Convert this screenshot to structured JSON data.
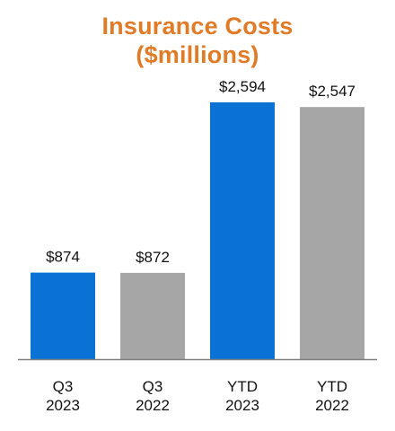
{
  "chart_data": {
    "type": "bar",
    "title_lines": [
      "Insurance Costs",
      "($millions)"
    ],
    "categories": [
      [
        "Q3",
        "2023"
      ],
      [
        "Q3",
        "2022"
      ],
      [
        "YTD",
        "2023"
      ],
      [
        "YTD",
        "2022"
      ]
    ],
    "values": [
      874,
      872,
      2594,
      2547
    ],
    "value_labels": [
      "$874",
      "$872",
      "$2,594",
      "$2,547"
    ],
    "bar_colors": [
      "#0a72d4",
      "#a6a6a6",
      "#0a72d4",
      "#a6a6a6"
    ],
    "ylim": [
      0,
      3000
    ],
    "grid": false,
    "legend": "none"
  },
  "colors": {
    "title": "#e07b28",
    "current_year": "#0a72d4",
    "prior_year": "#a6a6a6",
    "axis": "#808080"
  }
}
